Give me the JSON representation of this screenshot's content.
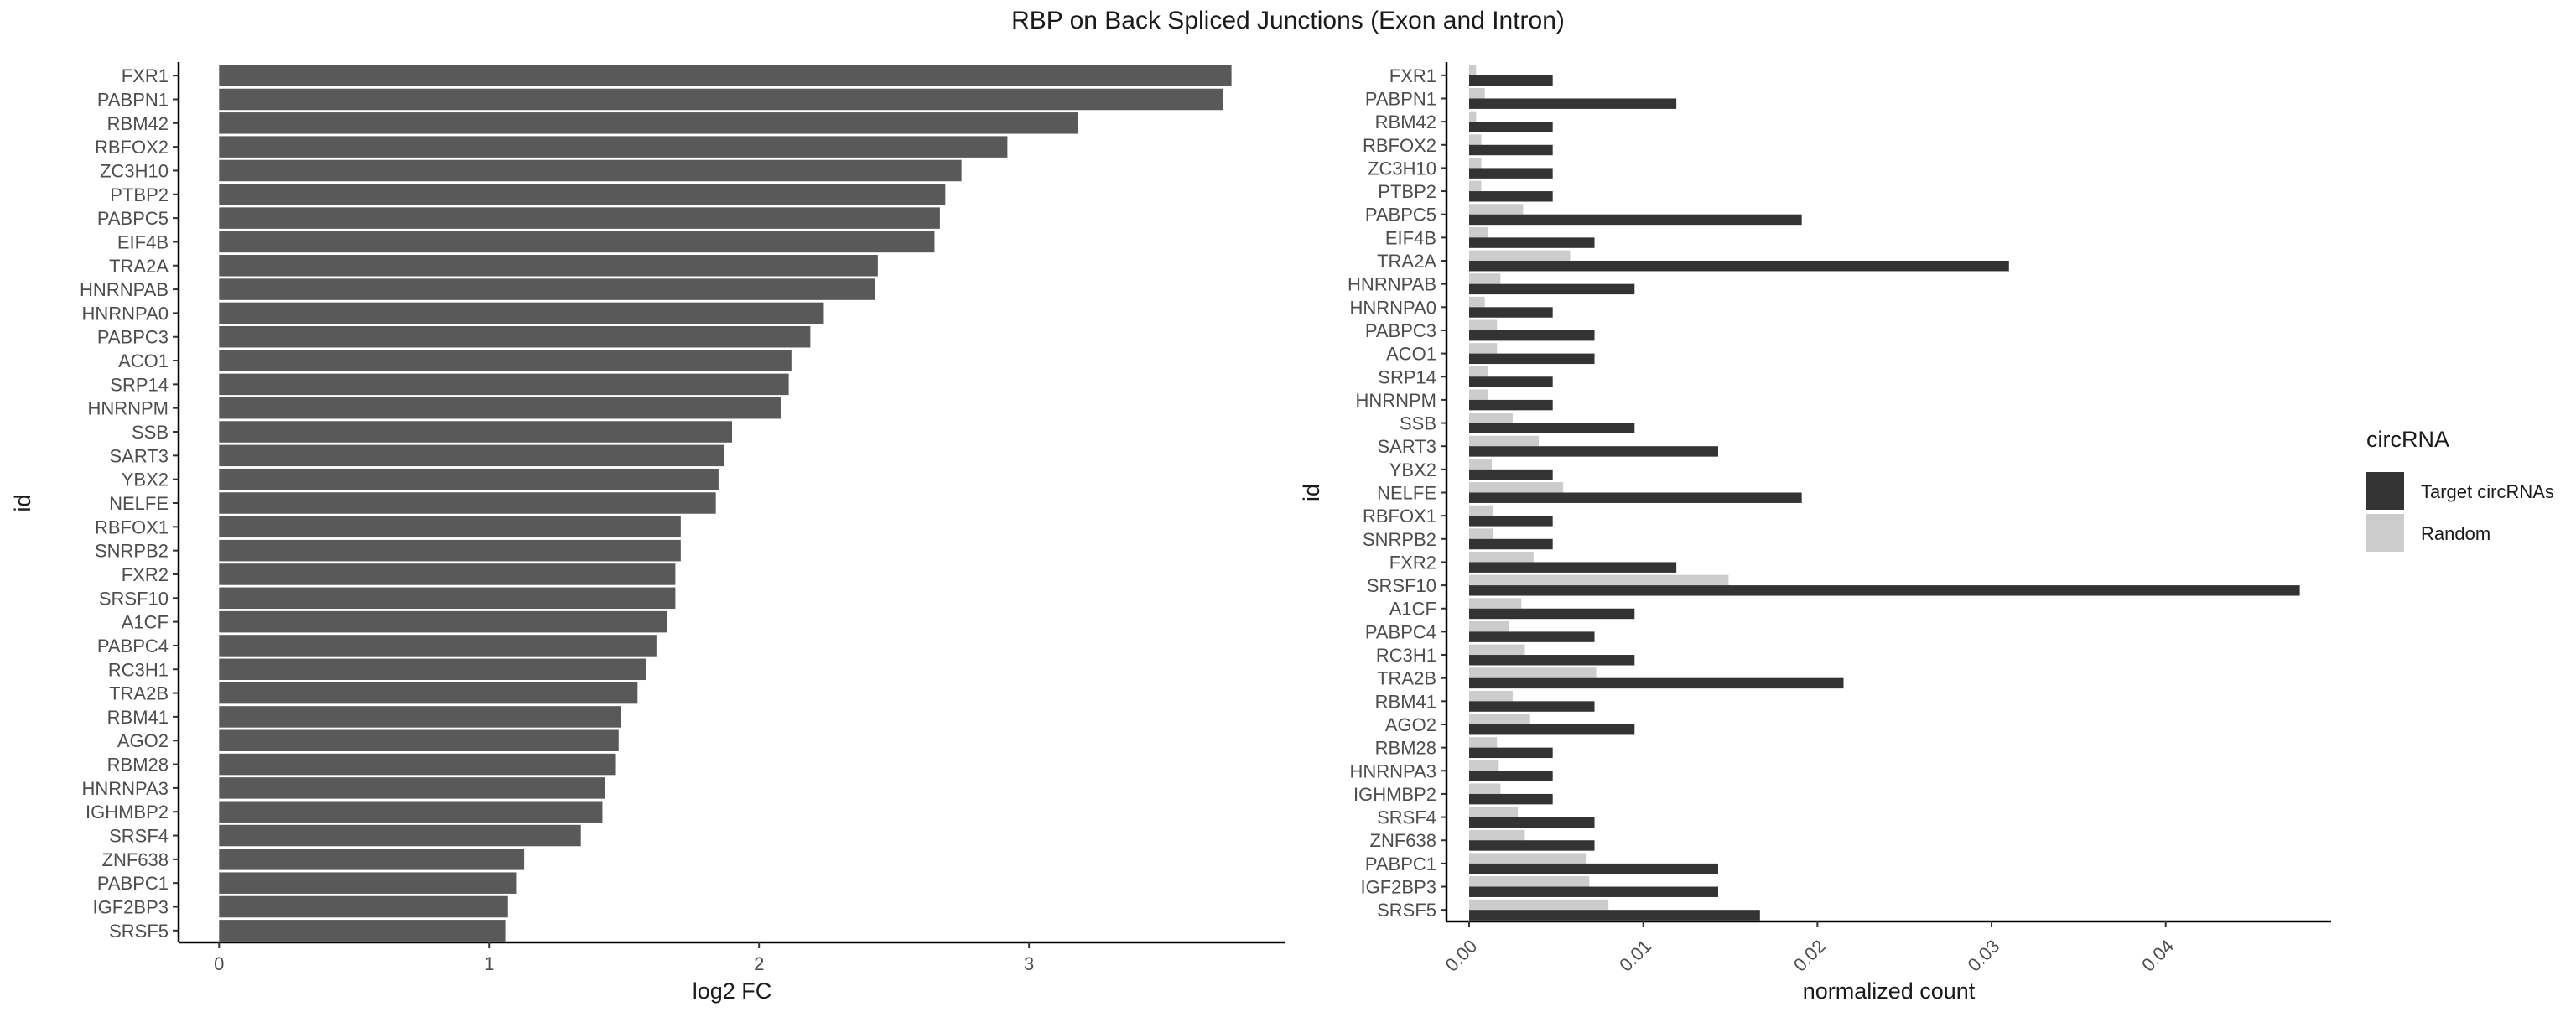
{
  "title": "RBP on Back Spliced Junctions (Exon and Intron)",
  "colors": {
    "bar_left": "#595959",
    "target": "#333333",
    "random": "#cccccc",
    "axis": "#000000"
  },
  "chart_data": [
    {
      "type": "bar",
      "orientation": "horizontal",
      "xlabel": "log2 FC",
      "ylabel": "id",
      "xlim": [
        -0.15,
        3.95
      ],
      "xticks": [
        0,
        1,
        2,
        3
      ],
      "xtick_labels": [
        "0",
        "1",
        "2",
        "3"
      ],
      "categories": [
        "FXR1",
        "PABPN1",
        "RBM42",
        "RBFOX2",
        "ZC3H10",
        "PTBP2",
        "PABPC5",
        "EIF4B",
        "TRA2A",
        "HNRNPAB",
        "HNRNPA0",
        "PABPC3",
        "ACO1",
        "SRP14",
        "HNRNPM",
        "SSB",
        "SART3",
        "YBX2",
        "NELFE",
        "RBFOX1",
        "SNRPB2",
        "FXR2",
        "SRSF10",
        "A1CF",
        "PABPC4",
        "RC3H1",
        "TRA2B",
        "RBM41",
        "AGO2",
        "RBM28",
        "HNRNPA3",
        "IGHMBP2",
        "SRSF4",
        "ZNF638",
        "PABPC1",
        "IGF2BP3",
        "SRSF5"
      ],
      "values": [
        3.75,
        3.72,
        3.18,
        2.92,
        2.75,
        2.69,
        2.67,
        2.65,
        2.44,
        2.43,
        2.24,
        2.19,
        2.12,
        2.11,
        2.08,
        1.9,
        1.87,
        1.85,
        1.84,
        1.71,
        1.71,
        1.69,
        1.69,
        1.66,
        1.62,
        1.58,
        1.55,
        1.49,
        1.48,
        1.47,
        1.43,
        1.42,
        1.34,
        1.13,
        1.1,
        1.07,
        1.06
      ],
      "grid": false
    },
    {
      "type": "bar",
      "orientation": "horizontal",
      "grouped": true,
      "xlabel": "normalized count",
      "ylabel": "id",
      "xlim": [
        -0.0013,
        0.0495
      ],
      "xticks": [
        0,
        0.01,
        0.02,
        0.03,
        0.04
      ],
      "xtick_labels": [
        "0.00",
        "0.01",
        "0.02",
        "0.03",
        "0.04"
      ],
      "categories": [
        "FXR1",
        "PABPN1",
        "RBM42",
        "RBFOX2",
        "ZC3H10",
        "PTBP2",
        "PABPC5",
        "EIF4B",
        "TRA2A",
        "HNRNPAB",
        "HNRNPA0",
        "PABPC3",
        "ACO1",
        "SRP14",
        "HNRNPM",
        "SSB",
        "SART3",
        "YBX2",
        "NELFE",
        "RBFOX1",
        "SNRPB2",
        "FXR2",
        "SRSF10",
        "A1CF",
        "PABPC4",
        "RC3H1",
        "TRA2B",
        "RBM41",
        "AGO2",
        "RBM28",
        "HNRNPA3",
        "IGHMBP2",
        "SRSF4",
        "ZNF638",
        "PABPC1",
        "IGF2BP3",
        "SRSF5"
      ],
      "series": [
        {
          "name": "Target circRNAs",
          "values": [
            0.0048,
            0.0119,
            0.0048,
            0.0048,
            0.0048,
            0.0048,
            0.0191,
            0.0072,
            0.031,
            0.0095,
            0.0048,
            0.0072,
            0.0072,
            0.0048,
            0.0048,
            0.0095,
            0.0143,
            0.0048,
            0.0191,
            0.0048,
            0.0048,
            0.0119,
            0.0477,
            0.0095,
            0.0072,
            0.0095,
            0.0215,
            0.0072,
            0.0095,
            0.0048,
            0.0048,
            0.0048,
            0.0072,
            0.0072,
            0.0143,
            0.0143,
            0.0167
          ]
        },
        {
          "name": "Random",
          "values": [
            0.0004,
            0.0009,
            0.0004,
            0.0007,
            0.0007,
            0.0007,
            0.0031,
            0.0011,
            0.0058,
            0.0018,
            0.0009,
            0.0016,
            0.0016,
            0.0011,
            0.0011,
            0.0025,
            0.004,
            0.0013,
            0.0054,
            0.0014,
            0.0014,
            0.0037,
            0.0149,
            0.003,
            0.0023,
            0.0032,
            0.0073,
            0.0025,
            0.0035,
            0.0016,
            0.0017,
            0.0018,
            0.0028,
            0.0032,
            0.0067,
            0.0069,
            0.008
          ]
        }
      ],
      "legend": {
        "title": "circRNA",
        "position": "right",
        "entries": [
          "Target circRNAs",
          "Random"
        ]
      },
      "grid": false
    }
  ]
}
